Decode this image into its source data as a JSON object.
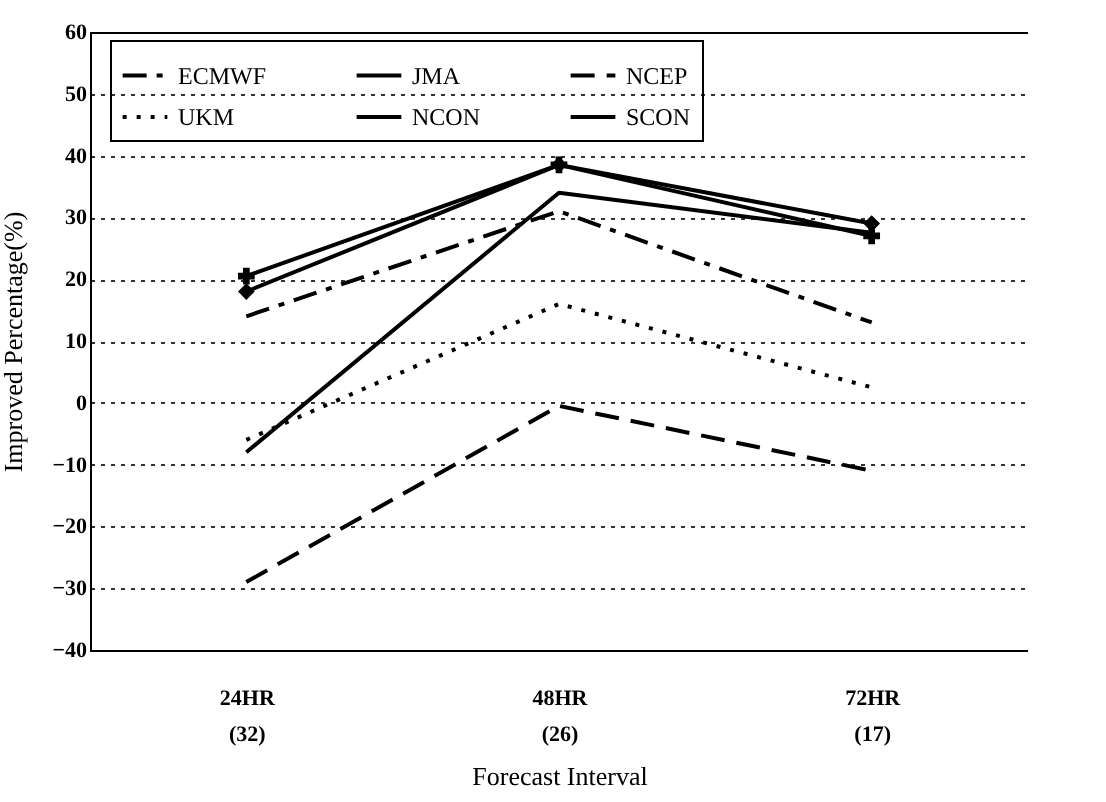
{
  "chart_data": {
    "type": "line",
    "xlabel": "Forecast Interval",
    "ylabel": "Improved Percentage(%)",
    "categories": [
      "24HR\n(32)",
      "48HR\n(26)",
      "72HR\n(17)"
    ],
    "ylim": [
      -40,
      60
    ],
    "yticks": [
      -40,
      -30,
      -20,
      -10,
      0,
      10,
      20,
      30,
      40,
      50,
      60
    ],
    "grid": "y",
    "legend": "top",
    "series": [
      {
        "name": "ECMWF",
        "color": "#000000",
        "line_style": "dashdot",
        "values": [
          14,
          31,
          13
        ]
      },
      {
        "name": "JMA",
        "color": "#000000",
        "line_style": "solid",
        "values": [
          -8,
          34,
          27.5
        ]
      },
      {
        "name": "NCEP",
        "color": "#000000",
        "line_style": "dashed",
        "values": [
          -29,
          -0.5,
          -11
        ]
      },
      {
        "name": "UKM",
        "color": "#000000",
        "line_style": "dotted",
        "values": [
          -6,
          16,
          2.5
        ]
      },
      {
        "name": "NCON",
        "color": "#000000",
        "line_style": "solid",
        "marker": "cross",
        "values": [
          20.5,
          38.5,
          27
        ]
      },
      {
        "name": "SCON",
        "color": "#000000",
        "line_style": "solid",
        "marker": "diamond",
        "values": [
          18,
          38.5,
          29
        ]
      }
    ]
  }
}
